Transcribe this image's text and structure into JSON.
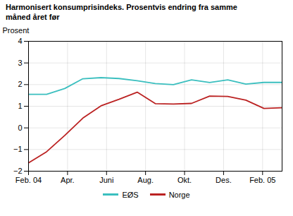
{
  "chart_data": {
    "type": "line",
    "title": "Harmonisert konsumprisindeks. Prosentvis endring fra samme\nmåned året før",
    "y_label": "Prosent",
    "x": [
      0,
      0.9285714285714286,
      1.8571428571428572,
      2.7857142857142856,
      3.7142857142857144,
      4.642857142857143,
      5.571428571428571,
      6.5,
      7.428571428571429,
      8.357142857142858,
      9.285714285714286,
      10.214285714285714,
      11.142857142857142,
      12.071428571428571,
      13
    ],
    "series": [
      {
        "name": "EØS",
        "color": "#3bbfbf",
        "values": [
          1.55,
          1.55,
          1.82,
          2.27,
          2.32,
          2.28,
          2.18,
          2.05,
          2.0,
          2.22,
          2.1,
          2.22,
          2.02,
          2.1,
          2.1
        ]
      },
      {
        "name": "Norge",
        "color": "#bb2222",
        "values": [
          -1.62,
          -1.1,
          -0.35,
          0.45,
          1.02,
          1.32,
          1.65,
          1.12,
          1.1,
          1.13,
          1.47,
          1.45,
          1.28,
          0.9,
          0.93
        ]
      }
    ],
    "xlim": [
      0,
      13
    ],
    "ylim": [
      -2,
      4
    ],
    "xticks": [
      {
        "value": 0,
        "label": "Feb. 04"
      },
      {
        "value": 2,
        "label": "Apr."
      },
      {
        "value": 4,
        "label": "Juni"
      },
      {
        "value": 6,
        "label": "Aug."
      },
      {
        "value": 8,
        "label": "Okt."
      },
      {
        "value": 10,
        "label": "Des."
      },
      {
        "value": 12,
        "label": "Feb. 05"
      }
    ],
    "yticks": [
      -2,
      -1,
      0,
      1,
      2,
      3,
      4
    ],
    "grid": true,
    "legend": "bottom"
  }
}
